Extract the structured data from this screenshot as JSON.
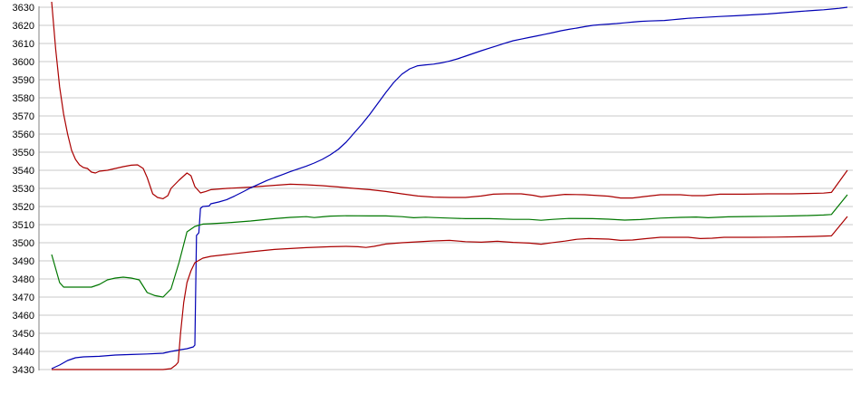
{
  "chart_data": {
    "type": "line",
    "title": "",
    "xlabel": "",
    "ylabel": "",
    "ylim": [
      3430,
      3630
    ],
    "y_tick_step": 10,
    "y_tick_labels": [
      "3430",
      "3440",
      "3450",
      "3460",
      "3470",
      "3480",
      "3490",
      "3500",
      "3510",
      "3520",
      "3530",
      "3540",
      "3550",
      "3560",
      "3570",
      "3580",
      "3590",
      "3600",
      "3610",
      "3620",
      "3630"
    ],
    "x_range": [
      0,
      100
    ],
    "x_tick_labels": [],
    "grid": true,
    "legend_position": "none",
    "colors": {
      "background": "#ffffff",
      "gridline": "#c8c8c8",
      "axis": "#808080",
      "label": "#000000",
      "red": "#aa0000",
      "green": "#007700",
      "blue": "#0000b4"
    },
    "series": [
      {
        "name": "red-upper",
        "color_key": "red",
        "points": [
          [
            0,
            3633
          ],
          [
            0.5,
            3607
          ],
          [
            1,
            3586
          ],
          [
            1.5,
            3571
          ],
          [
            2,
            3560
          ],
          [
            2.5,
            3551
          ],
          [
            3,
            3546
          ],
          [
            3.5,
            3543
          ],
          [
            4,
            3541.5
          ],
          [
            4.5,
            3541
          ],
          [
            5,
            3539
          ],
          [
            5.5,
            3538.5
          ],
          [
            6,
            3539.5
          ],
          [
            7,
            3540
          ],
          [
            8,
            3541
          ],
          [
            9,
            3542
          ],
          [
            10,
            3542.8
          ],
          [
            10.8,
            3543
          ],
          [
            11.5,
            3541
          ],
          [
            12,
            3536
          ],
          [
            12.7,
            3527
          ],
          [
            13.3,
            3525
          ],
          [
            14,
            3524.3
          ],
          [
            14.6,
            3526
          ],
          [
            15,
            3530
          ],
          [
            16,
            3534.5
          ],
          [
            17,
            3538.5
          ],
          [
            17.5,
            3537
          ],
          [
            18,
            3531
          ],
          [
            18.7,
            3527.5
          ],
          [
            19.3,
            3528.2
          ],
          [
            20,
            3529.3
          ],
          [
            22,
            3530
          ],
          [
            25,
            3530.7
          ],
          [
            28,
            3531.7
          ],
          [
            30,
            3532.3
          ],
          [
            32,
            3532
          ],
          [
            34,
            3531.5
          ],
          [
            36,
            3530.8
          ],
          [
            38,
            3530
          ],
          [
            40,
            3529.3
          ],
          [
            42,
            3528.3
          ],
          [
            44,
            3527
          ],
          [
            46,
            3525.8
          ],
          [
            48,
            3525.2
          ],
          [
            50,
            3525
          ],
          [
            52,
            3525
          ],
          [
            54,
            3525.8
          ],
          [
            55.5,
            3526.8
          ],
          [
            57,
            3527
          ],
          [
            59,
            3527
          ],
          [
            60.5,
            3526.2
          ],
          [
            61.5,
            3525.3
          ],
          [
            63,
            3526
          ],
          [
            64.5,
            3526.7
          ],
          [
            67,
            3526.5
          ],
          [
            70,
            3525.7
          ],
          [
            71.5,
            3524.7
          ],
          [
            73,
            3524.7
          ],
          [
            74.5,
            3525.5
          ],
          [
            76.5,
            3526.5
          ],
          [
            79,
            3526.5
          ],
          [
            80.5,
            3526
          ],
          [
            82,
            3526
          ],
          [
            84,
            3526.8
          ],
          [
            87,
            3526.8
          ],
          [
            90,
            3527
          ],
          [
            93,
            3527
          ],
          [
            95,
            3527.2
          ],
          [
            97,
            3527.4
          ],
          [
            98,
            3527.8
          ],
          [
            100,
            3540
          ]
        ]
      },
      {
        "name": "blue",
        "color_key": "blue",
        "points": [
          [
            0,
            3430.5
          ],
          [
            1,
            3432.5
          ],
          [
            2,
            3435
          ],
          [
            3,
            3436.5
          ],
          [
            4,
            3437
          ],
          [
            6,
            3437.3
          ],
          [
            8,
            3438
          ],
          [
            10,
            3438.3
          ],
          [
            12,
            3438.6
          ],
          [
            14,
            3439
          ],
          [
            15,
            3440
          ],
          [
            16,
            3440.8
          ],
          [
            17,
            3441.5
          ],
          [
            17.8,
            3442.5
          ],
          [
            18,
            3443.5
          ],
          [
            18.2,
            3504
          ],
          [
            18.5,
            3505.5
          ],
          [
            18.7,
            3519
          ],
          [
            19,
            3520
          ],
          [
            19.8,
            3520.3
          ],
          [
            20,
            3521.5
          ],
          [
            21,
            3522.5
          ],
          [
            22,
            3523.8
          ],
          [
            23,
            3525.8
          ],
          [
            24,
            3528
          ],
          [
            25,
            3530.3
          ],
          [
            26,
            3532.3
          ],
          [
            27,
            3534.3
          ],
          [
            28,
            3536
          ],
          [
            29,
            3537.6
          ],
          [
            30,
            3539.3
          ],
          [
            31,
            3540.8
          ],
          [
            32,
            3542.3
          ],
          [
            33,
            3544
          ],
          [
            34,
            3546
          ],
          [
            35,
            3548.5
          ],
          [
            36,
            3551.5
          ],
          [
            37,
            3555.5
          ],
          [
            38,
            3560.5
          ],
          [
            39,
            3565.5
          ],
          [
            40,
            3571
          ],
          [
            41,
            3577
          ],
          [
            42,
            3583
          ],
          [
            43,
            3588.5
          ],
          [
            44,
            3593
          ],
          [
            45,
            3596
          ],
          [
            46,
            3597.7
          ],
          [
            47,
            3598.2
          ],
          [
            48,
            3598.6
          ],
          [
            49,
            3599.3
          ],
          [
            50,
            3600.3
          ],
          [
            51,
            3601.5
          ],
          [
            52,
            3603
          ],
          [
            53,
            3604.5
          ],
          [
            54,
            3606
          ],
          [
            55,
            3607.4
          ],
          [
            56,
            3608.8
          ],
          [
            57,
            3610.2
          ],
          [
            58,
            3611.5
          ],
          [
            59,
            3612.4
          ],
          [
            60,
            3613.3
          ],
          [
            61,
            3614.2
          ],
          [
            62,
            3615.1
          ],
          [
            63,
            3616
          ],
          [
            64,
            3617
          ],
          [
            65,
            3617.8
          ],
          [
            66,
            3618.5
          ],
          [
            67,
            3619.3
          ],
          [
            68,
            3620
          ],
          [
            69,
            3620.4
          ],
          [
            70,
            3620.7
          ],
          [
            71,
            3621
          ],
          [
            72,
            3621.4
          ],
          [
            73,
            3621.8
          ],
          [
            74,
            3622.2
          ],
          [
            75,
            3622.4
          ],
          [
            77,
            3622.7
          ],
          [
            78,
            3623.1
          ],
          [
            79,
            3623.5
          ],
          [
            80,
            3623.9
          ],
          [
            82,
            3624.4
          ],
          [
            84,
            3624.9
          ],
          [
            86,
            3625.3
          ],
          [
            88,
            3625.8
          ],
          [
            90,
            3626.3
          ],
          [
            92,
            3627
          ],
          [
            94,
            3627.7
          ],
          [
            95,
            3628
          ],
          [
            96,
            3628.3
          ],
          [
            97,
            3628.6
          ],
          [
            98,
            3629
          ],
          [
            99,
            3629.4
          ],
          [
            100,
            3630
          ]
        ]
      },
      {
        "name": "green",
        "color_key": "green",
        "points": [
          [
            0,
            3493.5
          ],
          [
            1,
            3478
          ],
          [
            1.5,
            3475.5
          ],
          [
            3,
            3475.5
          ],
          [
            5,
            3475.5
          ],
          [
            6,
            3477
          ],
          [
            7,
            3479.5
          ],
          [
            8,
            3480.5
          ],
          [
            9,
            3481
          ],
          [
            10,
            3480.5
          ],
          [
            11,
            3479.5
          ],
          [
            12,
            3472.5
          ],
          [
            13,
            3470.8
          ],
          [
            14,
            3470
          ],
          [
            15,
            3474.5
          ],
          [
            16,
            3489
          ],
          [
            17,
            3506
          ],
          [
            18,
            3509
          ],
          [
            19,
            3510.3
          ],
          [
            20,
            3510.5
          ],
          [
            22,
            3511
          ],
          [
            25,
            3512
          ],
          [
            28,
            3513.3
          ],
          [
            30,
            3514
          ],
          [
            32,
            3514.4
          ],
          [
            33,
            3513.9
          ],
          [
            34,
            3514.3
          ],
          [
            35,
            3514.7
          ],
          [
            37,
            3514.9
          ],
          [
            40,
            3514.8
          ],
          [
            42,
            3514.8
          ],
          [
            44,
            3514.4
          ],
          [
            45.5,
            3513.8
          ],
          [
            47,
            3514.1
          ],
          [
            48,
            3513.9
          ],
          [
            50,
            3513.6
          ],
          [
            52,
            3513.3
          ],
          [
            55,
            3513.3
          ],
          [
            58,
            3512.9
          ],
          [
            60,
            3512.9
          ],
          [
            61.5,
            3512.4
          ],
          [
            63,
            3512.9
          ],
          [
            65,
            3513.4
          ],
          [
            68,
            3513.3
          ],
          [
            70,
            3513
          ],
          [
            72,
            3512.5
          ],
          [
            74,
            3512.8
          ],
          [
            76.5,
            3513.6
          ],
          [
            79,
            3514
          ],
          [
            81,
            3514.2
          ],
          [
            82.5,
            3513.8
          ],
          [
            85,
            3514.3
          ],
          [
            88,
            3514.5
          ],
          [
            90,
            3514.6
          ],
          [
            93,
            3514.8
          ],
          [
            95,
            3515
          ],
          [
            97,
            3515.3
          ],
          [
            98,
            3515.6
          ],
          [
            100,
            3526.5
          ]
        ]
      },
      {
        "name": "red-lower",
        "color_key": "red",
        "points": [
          [
            0,
            3430
          ],
          [
            4,
            3430
          ],
          [
            8,
            3430
          ],
          [
            12,
            3430
          ],
          [
            14,
            3430
          ],
          [
            15,
            3430.5
          ],
          [
            15.6,
            3432.5
          ],
          [
            15.9,
            3434
          ],
          [
            16.2,
            3450
          ],
          [
            16.6,
            3467
          ],
          [
            17,
            3478
          ],
          [
            17.5,
            3484.5
          ],
          [
            18,
            3489
          ],
          [
            19,
            3491.5
          ],
          [
            20,
            3492.5
          ],
          [
            21,
            3493
          ],
          [
            22,
            3493.5
          ],
          [
            25,
            3495
          ],
          [
            28,
            3496.3
          ],
          [
            30,
            3496.8
          ],
          [
            32,
            3497.3
          ],
          [
            35,
            3497.8
          ],
          [
            37,
            3498
          ],
          [
            38.5,
            3497.8
          ],
          [
            39.5,
            3497.4
          ],
          [
            40.5,
            3498
          ],
          [
            42,
            3499.3
          ],
          [
            44,
            3500
          ],
          [
            46,
            3500.5
          ],
          [
            48,
            3501
          ],
          [
            50,
            3501.3
          ],
          [
            52,
            3500.6
          ],
          [
            54,
            3500.3
          ],
          [
            56,
            3500.8
          ],
          [
            58,
            3500.2
          ],
          [
            60,
            3499.8
          ],
          [
            61.5,
            3499.2
          ],
          [
            63,
            3500.1
          ],
          [
            64.5,
            3500.9
          ],
          [
            66,
            3501.9
          ],
          [
            67.5,
            3502.3
          ],
          [
            70,
            3502
          ],
          [
            71.5,
            3501.3
          ],
          [
            73,
            3501.5
          ],
          [
            74.5,
            3502.2
          ],
          [
            76.5,
            3503
          ],
          [
            80,
            3503
          ],
          [
            81.5,
            3502.3
          ],
          [
            83,
            3502.5
          ],
          [
            84.5,
            3503
          ],
          [
            88,
            3503
          ],
          [
            91,
            3503.1
          ],
          [
            94,
            3503.3
          ],
          [
            96,
            3503.5
          ],
          [
            98,
            3503.8
          ],
          [
            100,
            3514.5
          ]
        ]
      }
    ]
  }
}
